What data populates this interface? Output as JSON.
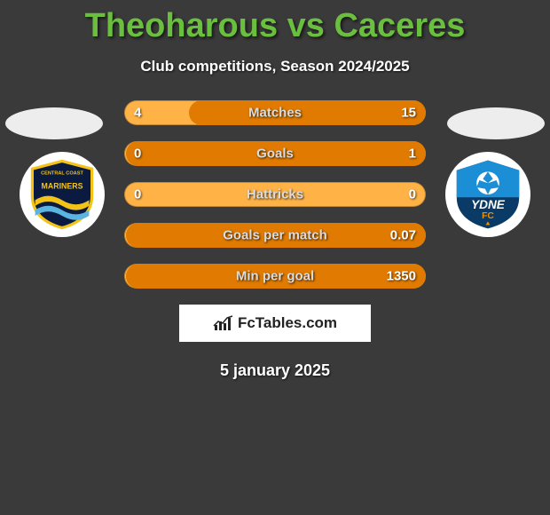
{
  "title": "Theoharous vs Caceres",
  "subtitle": "Club competitions, Season 2024/2025",
  "date": "5 january 2025",
  "brand": "FcTables.com",
  "colors": {
    "title": "#6bbf3f",
    "bg": "#3a3a3a",
    "bar_bg": "#ffb347",
    "bar_fill": "#e07a00",
    "text": "#ffffff",
    "label": "#dcdcdc",
    "brand_box": "#ffffff",
    "brand_text": "#222222"
  },
  "bars": [
    {
      "label": "Matches",
      "left": "4",
      "right": "15",
      "fillSide": "right",
      "fillPct": 79
    },
    {
      "label": "Goals",
      "left": "0",
      "right": "1",
      "fillSide": "right",
      "fillPct": 100
    },
    {
      "label": "Hattricks",
      "left": "0",
      "right": "0",
      "fillSide": "none",
      "fillPct": 0
    },
    {
      "label": "Goals per match",
      "left": "",
      "right": "0.07",
      "fillSide": "right",
      "fillPct": 100
    },
    {
      "label": "Min per goal",
      "left": "",
      "right": "1350",
      "fillSide": "right",
      "fillPct": 100
    }
  ],
  "team_left": {
    "name": "Central Coast Mariners",
    "shield_bg": "#0a1a40",
    "ring": "#f3c417",
    "wave1": "#f3c417",
    "wave2": "#5bb4e0"
  },
  "team_right": {
    "name": "Sydney FC",
    "shield_top": "#1b8ed6",
    "shield_bot": "#0a3a66",
    "ball": "#ffffff",
    "text": "#ffffff",
    "orange": "#f28c00"
  }
}
